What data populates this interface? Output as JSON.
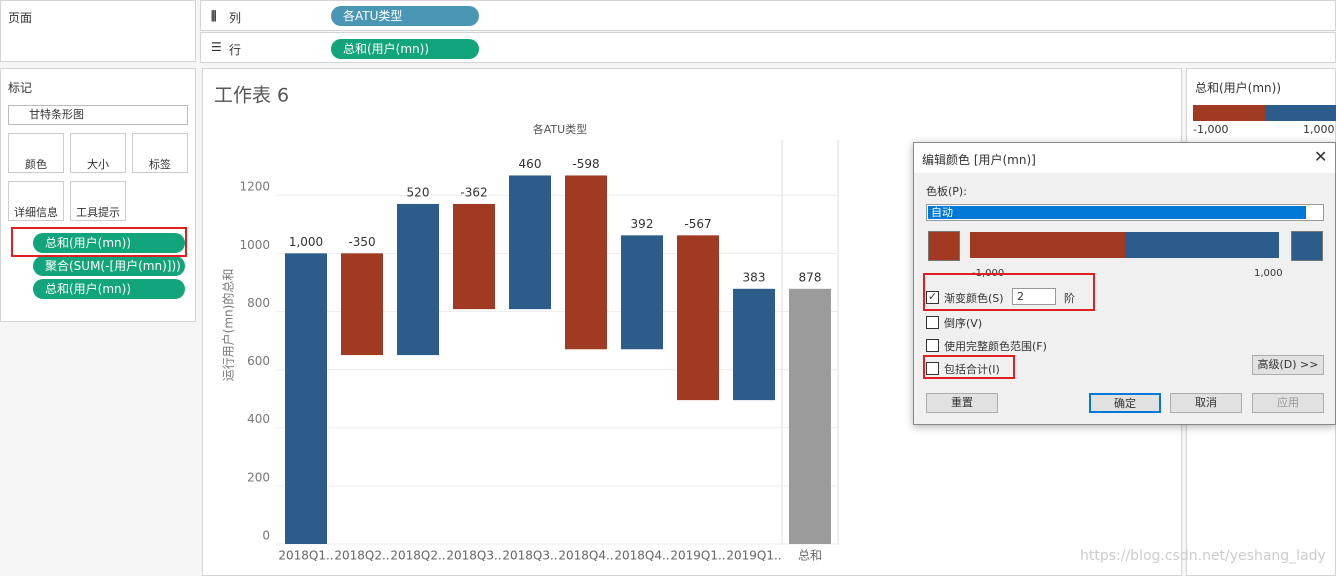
{
  "shelves": {
    "pages": "页面",
    "columns_label": "列",
    "columns_pill": "各ATU类型",
    "rows_label": "行",
    "rows_pill": "总和(用户(mn))"
  },
  "marks": {
    "title": "标记",
    "mark_type": "甘特条形图",
    "buttons": [
      "颜色",
      "大小",
      "标签",
      "详细信息",
      "工具提示"
    ],
    "pills": [
      "总和(用户(mn))",
      "聚合(SUM(-[用户(mn)]))",
      "总和(用户(mn))"
    ]
  },
  "legend": {
    "title": "总和(用户(mn))",
    "min_label": "-1,000",
    "max_label": "1,000"
  },
  "dialog": {
    "title": "编辑颜色 [用户(mn)]",
    "palette_label": "色板(P):",
    "palette_value": "自动",
    "range_min": "-1,000",
    "range_max": "1,000",
    "stepped_label": "渐变颜色(S)",
    "steps": 2,
    "steps_unit": "阶",
    "reverse": "倒序(V)",
    "full_range": "使用完整颜色范围(F)",
    "include_totals": "包括合计(I)",
    "advanced": "高级(D) >>",
    "buttons": [
      "重置",
      "确定",
      "取消",
      "应用"
    ]
  },
  "watermark": "https://blog.csdn.net/yeshang_lady",
  "chart_data": {
    "type": "waterfall",
    "title": "工作表 6",
    "x_label": "各ATU类型",
    "y_label": "运行用户(mn)的总和",
    "categories": [
      "2018Q1..",
      "2018Q2..",
      "2018Q2..",
      "2018Q3..",
      "2018Q3..",
      "2018Q4..",
      "2018Q4..",
      "2019Q1..",
      "2019Q1.."
    ],
    "values": [
      1000,
      -350,
      520,
      -362,
      460,
      -598,
      392,
      -567,
      383
    ],
    "value_labels": [
      "1,000",
      "-350",
      "520",
      "-362",
      "460",
      "-598",
      "392",
      "-567",
      "383"
    ],
    "positive_color": "#2b5c8a",
    "negative_color": "#a03a23",
    "total": {
      "category": "总和",
      "value": 878,
      "color": "#9b9b9b"
    },
    "ylim": [
      0,
      1390
    ],
    "yticks": [
      0,
      200,
      400,
      600,
      800,
      1000,
      1200
    ],
    "grid": true
  }
}
